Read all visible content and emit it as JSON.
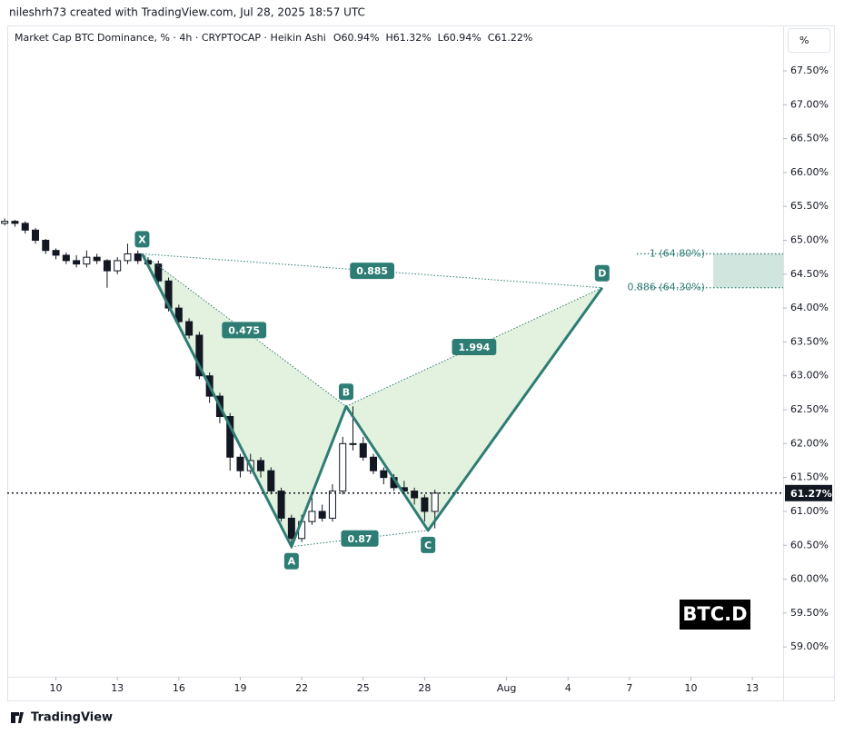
{
  "header": {
    "credit": "nileshrh73 created with TradingView.com, Jul 28, 2025 18:57 UTC",
    "symbol": "Market Cap BTC Dominance, % · 4h · CRYPTOCAP · Heikin Ashi",
    "ohlc": [
      "O60.94%",
      "H61.32%",
      "L60.94%",
      "C61.22%"
    ],
    "scale_button": "%"
  },
  "footer": {
    "logo": "TradingView"
  },
  "chart_data": {
    "type": "candlestick",
    "xlim": [
      "2025-07-07 15:00",
      "2025-08-14 12:00"
    ],
    "ylim": [
      58.56,
      68.17
    ],
    "grid": false,
    "up_color": "#ffffff",
    "down_color": "#131722",
    "xticks": [
      {
        "value": "2025-07-10 00:00",
        "label": "10"
      },
      {
        "value": "2025-07-13 00:00",
        "label": "13"
      },
      {
        "value": "2025-07-16 00:00",
        "label": "16"
      },
      {
        "value": "2025-07-19 00:00",
        "label": "19"
      },
      {
        "value": "2025-07-22 00:00",
        "label": "22"
      },
      {
        "value": "2025-07-25 00:00",
        "label": "25"
      },
      {
        "value": "2025-07-28 00:00",
        "label": "28"
      },
      {
        "value": "2025-08-01 00:00",
        "label": "Aug"
      },
      {
        "value": "2025-08-04 00:00",
        "label": "4"
      },
      {
        "value": "2025-08-07 00:00",
        "label": "7"
      },
      {
        "value": "2025-08-10 00:00",
        "label": "10"
      },
      {
        "value": "2025-08-13 00:00",
        "label": "13"
      }
    ],
    "yticks": [
      {
        "value": 67.5,
        "label": "67.50%"
      },
      {
        "value": 67,
        "label": "67.00%"
      },
      {
        "value": 66.5,
        "label": "66.50%"
      },
      {
        "value": 66,
        "label": "66.00%"
      },
      {
        "value": 65.5,
        "label": "65.50%"
      },
      {
        "value": 65,
        "label": "65.00%"
      },
      {
        "value": 64.5,
        "label": "64.50%"
      },
      {
        "value": 64,
        "label": "64.00%"
      },
      {
        "value": 63.5,
        "label": "63.50%"
      },
      {
        "value": 63,
        "label": "63.00%"
      },
      {
        "value": 62.5,
        "label": "62.50%"
      },
      {
        "value": 62,
        "label": "62.00%"
      },
      {
        "value": 61.5,
        "label": "61.50%"
      },
      {
        "value": 61,
        "label": "61.00%"
      },
      {
        "value": 60.5,
        "label": "60.50%"
      },
      {
        "value": 60,
        "label": "60.00%"
      },
      {
        "value": 59.5,
        "label": "59.50%"
      },
      {
        "value": 59,
        "label": "59.00%"
      }
    ],
    "candles": {
      "x": [
        "2025-07-07 12:00",
        "2025-07-08 00:00",
        "2025-07-08 12:00",
        "2025-07-09 00:00",
        "2025-07-09 12:00",
        "2025-07-10 00:00",
        "2025-07-10 12:00",
        "2025-07-11 00:00",
        "2025-07-11 12:00",
        "2025-07-12 00:00",
        "2025-07-12 12:00",
        "2025-07-13 00:00",
        "2025-07-13 12:00",
        "2025-07-14 00:00",
        "2025-07-14 12:00",
        "2025-07-15 00:00",
        "2025-07-15 12:00",
        "2025-07-16 00:00",
        "2025-07-16 12:00",
        "2025-07-17 00:00",
        "2025-07-17 12:00",
        "2025-07-18 00:00",
        "2025-07-18 12:00",
        "2025-07-19 00:00",
        "2025-07-19 12:00",
        "2025-07-20 00:00",
        "2025-07-20 12:00",
        "2025-07-21 00:00",
        "2025-07-21 12:00",
        "2025-07-22 00:00",
        "2025-07-22 12:00",
        "2025-07-23 00:00",
        "2025-07-23 12:00",
        "2025-07-24 00:00",
        "2025-07-24 12:00",
        "2025-07-25 00:00",
        "2025-07-25 12:00",
        "2025-07-26 00:00",
        "2025-07-26 12:00",
        "2025-07-27 00:00",
        "2025-07-27 12:00",
        "2025-07-28 00:00",
        "2025-07-28 12:00"
      ],
      "open": [
        65.25,
        65.28,
        65.25,
        65.15,
        65.0,
        64.85,
        64.78,
        64.7,
        64.65,
        64.75,
        64.7,
        64.55,
        64.7,
        64.8,
        64.7,
        64.65,
        64.4,
        64.0,
        63.8,
        63.6,
        63.0,
        62.7,
        62.4,
        61.8,
        61.6,
        61.75,
        61.6,
        61.3,
        60.9,
        60.6,
        60.85,
        61.0,
        60.9,
        61.3,
        62.0,
        62.0,
        61.8,
        61.6,
        61.5,
        61.35,
        61.3,
        61.2,
        61.0
      ],
      "high": [
        65.32,
        65.3,
        65.28,
        65.18,
        65.02,
        64.88,
        64.82,
        64.78,
        64.85,
        64.8,
        64.72,
        64.75,
        64.95,
        64.85,
        64.75,
        64.7,
        64.45,
        64.05,
        63.85,
        63.65,
        63.05,
        62.75,
        62.45,
        61.85,
        61.85,
        61.8,
        61.65,
        61.35,
        60.95,
        60.95,
        61.2,
        61.1,
        61.4,
        62.1,
        62.55,
        62.1,
        61.85,
        61.65,
        61.55,
        61.45,
        61.35,
        61.25,
        61.32
      ],
      "low": [
        65.22,
        65.2,
        65.1,
        64.95,
        64.8,
        64.72,
        64.65,
        64.6,
        64.6,
        64.65,
        64.3,
        64.5,
        64.65,
        64.65,
        64.6,
        64.35,
        63.95,
        63.75,
        63.55,
        62.95,
        62.6,
        62.3,
        61.6,
        61.5,
        61.55,
        61.5,
        61.25,
        60.85,
        60.45,
        60.55,
        60.8,
        60.85,
        60.85,
        61.25,
        61.9,
        61.75,
        61.55,
        61.4,
        61.3,
        61.25,
        61.1,
        60.85,
        60.75
      ],
      "close": [
        65.28,
        65.25,
        65.15,
        65.0,
        64.85,
        64.78,
        64.7,
        64.65,
        64.75,
        64.7,
        64.55,
        64.7,
        64.8,
        64.7,
        64.65,
        64.4,
        64.0,
        63.8,
        63.6,
        63.0,
        62.7,
        62.4,
        61.8,
        61.6,
        61.75,
        61.6,
        61.3,
        60.9,
        60.6,
        60.85,
        61.0,
        60.9,
        61.3,
        62.0,
        62.0,
        61.8,
        61.6,
        61.5,
        61.35,
        61.3,
        61.2,
        61.0,
        61.27
      ]
    },
    "last_price": {
      "value": 61.27,
      "label": "61.27%"
    },
    "pattern": {
      "color": "#2e7d74",
      "fill": "#e0f0dc",
      "points": [
        {
          "label": "X",
          "x": "2025-07-14 05:00",
          "value": 64.8,
          "position": "above"
        },
        {
          "label": "A",
          "x": "2025-07-21 12:00",
          "value": 60.48,
          "position": "below"
        },
        {
          "label": "B",
          "x": "2025-07-24 04:00",
          "value": 62.55,
          "position": "above"
        },
        {
          "label": "C",
          "x": "2025-07-28 04:00",
          "value": 60.72,
          "position": "below"
        },
        {
          "label": "D",
          "x": "2025-08-05 16:00",
          "value": 64.3,
          "position": "above"
        }
      ],
      "ratios": [
        {
          "from": 0,
          "to": 2,
          "label": "0.475"
        },
        {
          "from": 1,
          "to": 3,
          "label": "0.87"
        },
        {
          "from": 2,
          "to": 4,
          "label": "1.994"
        },
        {
          "from": 0,
          "to": 4,
          "label": "0.885"
        }
      ]
    },
    "target_zone": {
      "start": "2025-08-11 02:00",
      "color": "#cfe5dd",
      "levels": [
        {
          "value": 64.8,
          "label": "1 (64.80%)"
        },
        {
          "value": 64.3,
          "label": "0.886 (64.30%)"
        }
      ]
    },
    "badge": "BTC.D"
  }
}
